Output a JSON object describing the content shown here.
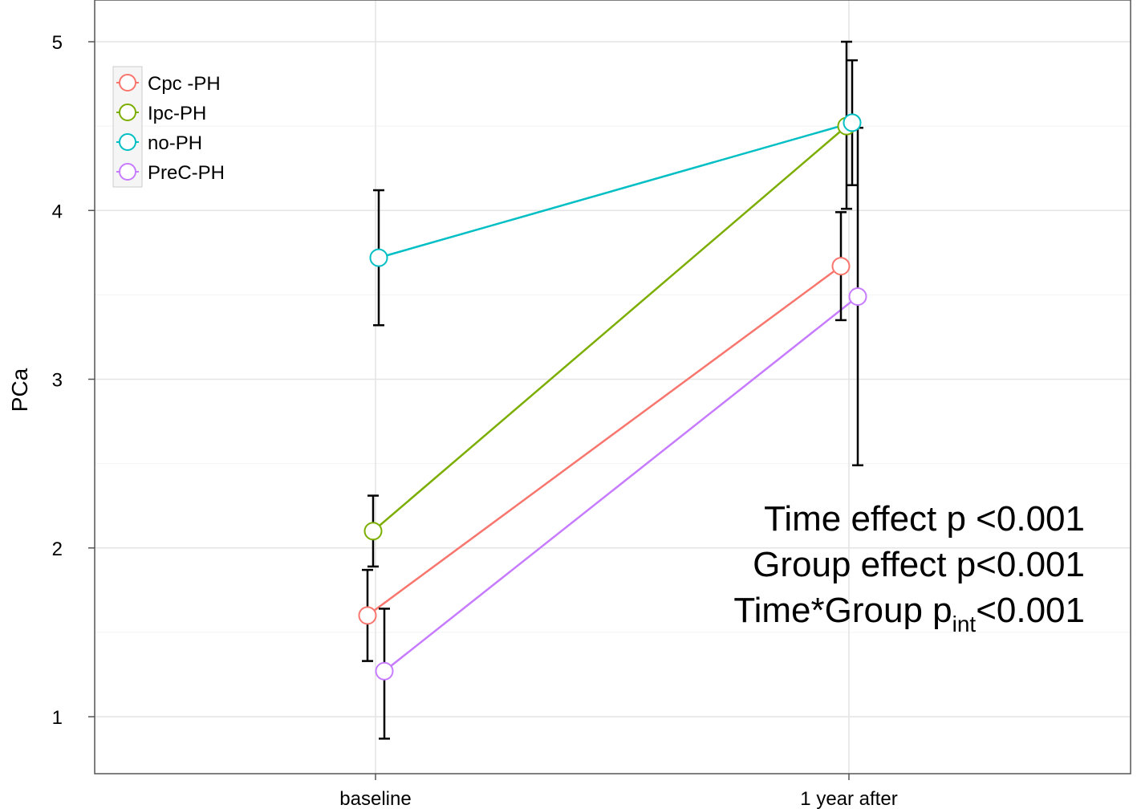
{
  "chart_data": {
    "type": "line",
    "ylabel": "PCa",
    "xlabel": "",
    "categories": [
      "baseline",
      "1 year after"
    ],
    "ylim": [
      0.7,
      5.2
    ],
    "yticks": [
      1,
      2,
      3,
      4,
      5
    ],
    "grid": true,
    "legend_position": "top-left",
    "series": [
      {
        "name": "Cpc -PH",
        "color": "#F8766D",
        "values": [
          1.6,
          3.67
        ],
        "err_low": [
          1.33,
          3.35
        ],
        "err_high": [
          1.87,
          3.99
        ]
      },
      {
        "name": "Ipc-PH",
        "color": "#7CAE00",
        "values": [
          2.1,
          4.5
        ],
        "err_low": [
          1.89,
          4.01
        ],
        "err_high": [
          2.31,
          5.0
        ]
      },
      {
        "name": "no-PH",
        "color": "#00BFC4",
        "values": [
          3.72,
          4.52
        ],
        "err_low": [
          3.32,
          4.15
        ],
        "err_high": [
          4.12,
          4.89
        ]
      },
      {
        "name": "PreC-PH",
        "color": "#C77CFF",
        "values": [
          1.27,
          3.49
        ],
        "err_low": [
          0.87,
          2.49
        ],
        "err_high": [
          1.64,
          4.49
        ]
      }
    ],
    "annotations": {
      "line1": "Time effect p <0.001",
      "line2": "Group effect p<0.001",
      "line3_prefix": "Time*Group p",
      "line3_sub": "int",
      "line3_suffix": "<0.001"
    }
  }
}
